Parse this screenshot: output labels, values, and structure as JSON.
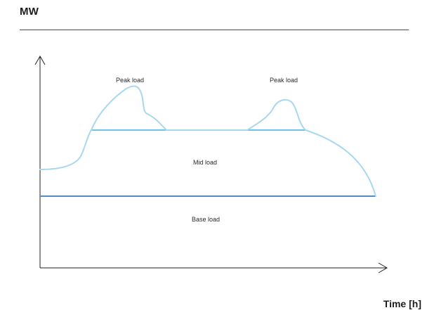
{
  "header": {
    "title": "MW"
  },
  "axes": {
    "x_label": "Time [h]"
  },
  "regions": {
    "peak_left": "Peak load",
    "peak_right": "Peak load",
    "mid": "Mid load",
    "base": "Base load"
  },
  "colors": {
    "base_line": "#4f8fc9",
    "mid_line": "#6ec4e6",
    "load_curve": "#a8d8ef",
    "axis": "#222222"
  }
}
